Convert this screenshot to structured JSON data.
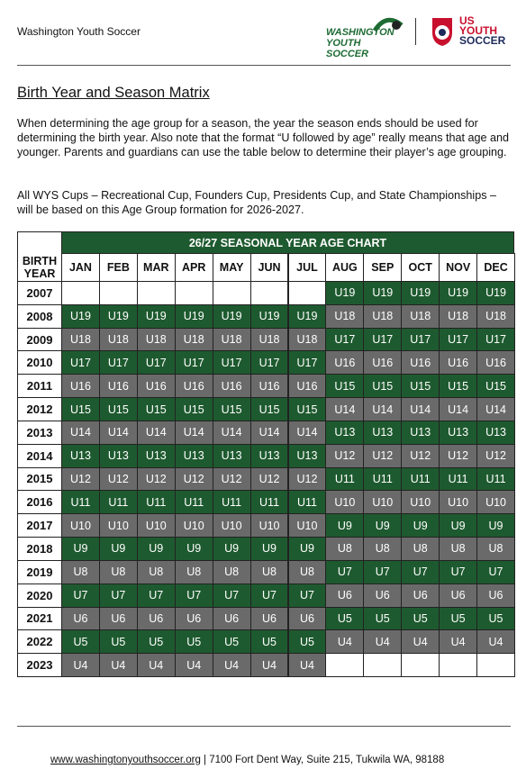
{
  "header": {
    "org": "Washington Youth Soccer",
    "logo_left": [
      "WASHINGTON",
      "YOUTH SOCCER"
    ],
    "logo_right": [
      "US",
      "YOUTH",
      "SOCCER"
    ]
  },
  "title": "Birth Year and Season Matrix",
  "paragraphs": [
    "When determining the age group for a season, the year the season ends should be used for determining the birth year. Also note that the format “U followed by age” really means that age and younger. Parents and guardians can use the table below to determine their player’s age grouping.",
    "All WYS Cups – Recreational Cup, Founders Cup, Presidents Cup, and State Championships – will be based on this Age Group formation for 2026-2027."
  ],
  "table": {
    "title": "26/27 SEASONAL YEAR AGE CHART",
    "corner": "BIRTH YEAR",
    "months": [
      "JAN",
      "FEB",
      "MAR",
      "APR",
      "MAY",
      "JUN",
      "JUL",
      "AUG",
      "SEP",
      "OCT",
      "NOV",
      "DEC"
    ],
    "shades": {
      "odd": "#1e5a2f",
      "even": "#6a6a6a"
    },
    "rows": [
      [
        "2007",
        null,
        null,
        null,
        null,
        null,
        null,
        null,
        "U19",
        "U19",
        "U19",
        "U19",
        "U19"
      ],
      [
        "2008",
        "U19",
        "U19",
        "U19",
        "U19",
        "U19",
        "U19",
        "U19",
        "U18",
        "U18",
        "U18",
        "U18",
        "U18"
      ],
      [
        "2009",
        "U18",
        "U18",
        "U18",
        "U18",
        "U18",
        "U18",
        "U18",
        "U17",
        "U17",
        "U17",
        "U17",
        "U17"
      ],
      [
        "2010",
        "U17",
        "U17",
        "U17",
        "U17",
        "U17",
        "U17",
        "U17",
        "U16",
        "U16",
        "U16",
        "U16",
        "U16"
      ],
      [
        "2011",
        "U16",
        "U16",
        "U16",
        "U16",
        "U16",
        "U16",
        "U16",
        "U15",
        "U15",
        "U15",
        "U15",
        "U15"
      ],
      [
        "2012",
        "U15",
        "U15",
        "U15",
        "U15",
        "U15",
        "U15",
        "U15",
        "U14",
        "U14",
        "U14",
        "U14",
        "U14"
      ],
      [
        "2013",
        "U14",
        "U14",
        "U14",
        "U14",
        "U14",
        "U14",
        "U14",
        "U13",
        "U13",
        "U13",
        "U13",
        "U13"
      ],
      [
        "2014",
        "U13",
        "U13",
        "U13",
        "U13",
        "U13",
        "U13",
        "U13",
        "U12",
        "U12",
        "U12",
        "U12",
        "U12"
      ],
      [
        "2015",
        "U12",
        "U12",
        "U12",
        "U12",
        "U12",
        "U12",
        "U12",
        "U11",
        "U11",
        "U11",
        "U11",
        "U11"
      ],
      [
        "2016",
        "U11",
        "U11",
        "U11",
        "U11",
        "U11",
        "U11",
        "U11",
        "U10",
        "U10",
        "U10",
        "U10",
        "U10"
      ],
      [
        "2017",
        "U10",
        "U10",
        "U10",
        "U10",
        "U10",
        "U10",
        "U10",
        "U9",
        "U9",
        "U9",
        "U9",
        "U9"
      ],
      [
        "2018",
        "U9",
        "U9",
        "U9",
        "U9",
        "U9",
        "U9",
        "U9",
        "U8",
        "U8",
        "U8",
        "U8",
        "U8"
      ],
      [
        "2019",
        "U8",
        "U8",
        "U8",
        "U8",
        "U8",
        "U8",
        "U8",
        "U7",
        "U7",
        "U7",
        "U7",
        "U7"
      ],
      [
        "2020",
        "U7",
        "U7",
        "U7",
        "U7",
        "U7",
        "U7",
        "U7",
        "U6",
        "U6",
        "U6",
        "U6",
        "U6"
      ],
      [
        "2021",
        "U6",
        "U6",
        "U6",
        "U6",
        "U6",
        "U6",
        "U6",
        "U5",
        "U5",
        "U5",
        "U5",
        "U5"
      ],
      [
        "2022",
        "U5",
        "U5",
        "U5",
        "U5",
        "U5",
        "U5",
        "U5",
        "U4",
        "U4",
        "U4",
        "U4",
        "U4"
      ],
      [
        "2023",
        "U4",
        "U4",
        "U4",
        "U4",
        "U4",
        "U4",
        "U4",
        null,
        null,
        null,
        null,
        null
      ]
    ]
  },
  "footer": {
    "url": "www.washingtonyouthsoccer.org",
    "address": " | 7100 Fort Dent Way, Suite 215, Tukwila WA, 98188"
  }
}
